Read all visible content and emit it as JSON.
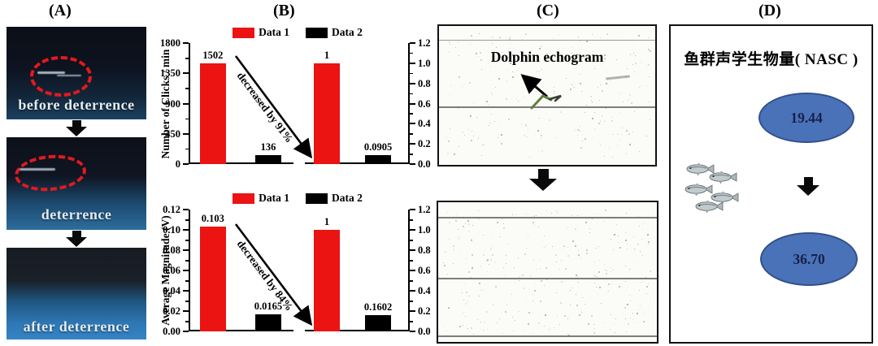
{
  "figure": {
    "panel_labels": {
      "a": "(A)",
      "b": "(B)",
      "c": "(C)",
      "d": "(D)"
    }
  },
  "panel_a": {
    "photos": [
      {
        "caption": "before deterrence",
        "has_highlight_ellipse": true
      },
      {
        "caption": "deterrence",
        "has_highlight_ellipse": true
      },
      {
        "caption": "after deterrence",
        "has_highlight_ellipse": false
      }
    ],
    "highlight_color": "#e4191d"
  },
  "panel_c": {
    "echogram_label": "Dolphin echogram"
  },
  "panel_d": {
    "title": "鱼群声学生物量( NASC )",
    "nasc_before": "19.44",
    "nasc_after": "36.70",
    "ellipse_color": "#4a72b8"
  },
  "chart_data": [
    {
      "type": "bar",
      "position": "top",
      "ylabel_left": "Number of Clicks / min",
      "left_axis": {
        "ticks": [
          "0",
          "450",
          "900",
          "1350",
          "1800"
        ],
        "max": 1800,
        "range": [
          0,
          1800
        ]
      },
      "right_axis": {
        "ticks": [
          "0.0",
          "0.2",
          "0.4",
          "0.6",
          "0.8",
          "1.0",
          "1.2"
        ],
        "max": 1.2,
        "range": [
          0,
          1.2
        ]
      },
      "legend": [
        {
          "label": "Data 1",
          "color": "#ec1313"
        },
        {
          "label": "Data 2",
          "color": "#000000"
        }
      ],
      "bars": [
        {
          "series": "Data 1",
          "axis": "left",
          "value": 1502,
          "label": "1502",
          "color": "#ec1313"
        },
        {
          "series": "Data 2",
          "axis": "left",
          "value": 136,
          "label": "136",
          "color": "#000000"
        },
        {
          "series": "Data 1",
          "axis": "right",
          "value": 1,
          "label": "1",
          "color": "#ec1313"
        },
        {
          "series": "Data 2",
          "axis": "right",
          "value": 0.0905,
          "label": "0.0905",
          "color": "#000000"
        }
      ],
      "annotation": "decreased by 91%",
      "grid": false,
      "legend_position": "top-center"
    },
    {
      "type": "bar",
      "position": "bottom",
      "ylabel_left": "Average Magnitude (V)",
      "left_axis": {
        "ticks": [
          "0.00",
          "0.02",
          "0.04",
          "0.06",
          "0.08",
          "0.10",
          "0.12"
        ],
        "max": 0.12,
        "range": [
          0,
          0.12
        ]
      },
      "right_axis": {
        "ticks": [
          "0.0",
          "0.2",
          "0.4",
          "0.6",
          "0.8",
          "1.0",
          "1.2"
        ],
        "max": 1.2,
        "range": [
          0,
          1.2
        ]
      },
      "legend": [
        {
          "label": "Data 1",
          "color": "#ec1313"
        },
        {
          "label": "Data 2",
          "color": "#000000"
        }
      ],
      "bars": [
        {
          "series": "Data 1",
          "axis": "left",
          "value": 0.103,
          "label": "0.103",
          "color": "#ec1313"
        },
        {
          "series": "Data 2",
          "axis": "left",
          "value": 0.0165,
          "label": "0.0165",
          "color": "#000000"
        },
        {
          "series": "Data 1",
          "axis": "right",
          "value": 1,
          "label": "1",
          "color": "#ec1313"
        },
        {
          "series": "Data 2",
          "axis": "right",
          "value": 0.1602,
          "label": "0.1602",
          "color": "#000000"
        }
      ],
      "annotation": "decreased by 84%",
      "grid": false,
      "legend_position": "top-center"
    }
  ]
}
